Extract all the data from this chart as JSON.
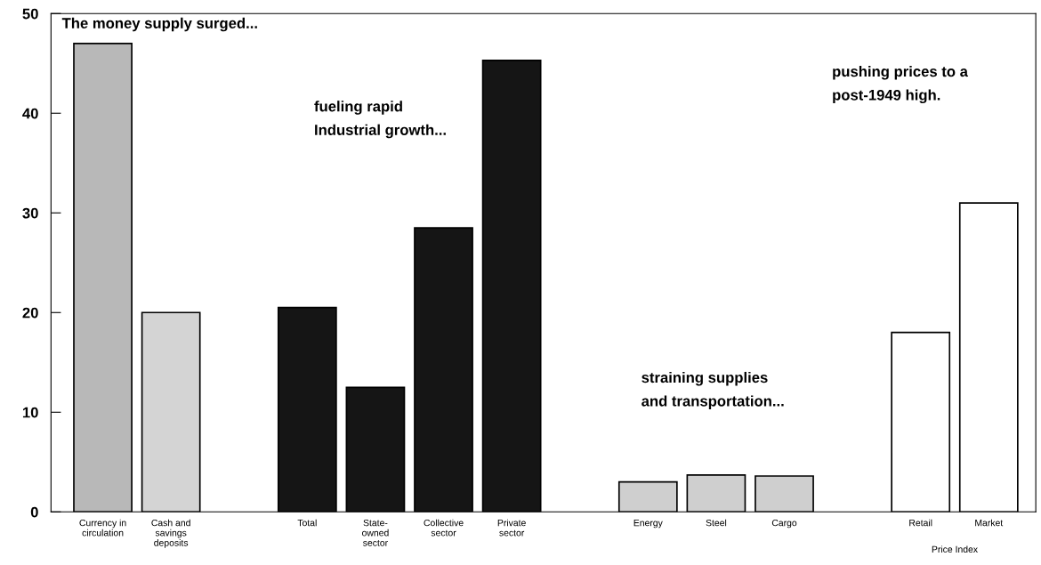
{
  "chart_data": {
    "type": "bar",
    "categories": [
      "Currency in\ncirculation",
      "Cash and\nsavings\ndeposits",
      null,
      "Total",
      "State-\nowned\nsector",
      "Collective\nsector",
      "Private\nsector",
      null,
      "Energy",
      "Steel",
      "Cargo",
      null,
      "Retail",
      "Market"
    ],
    "values": [
      47,
      20,
      null,
      20.5,
      12.5,
      28.5,
      45.3,
      null,
      3,
      3.7,
      3.6,
      null,
      18,
      31
    ],
    "colors": [
      "#b8b8b8",
      "#d4d4d4",
      null,
      "#151515",
      "#151515",
      "#151515",
      "#151515",
      null,
      "#cfcfcf",
      "#cfcfcf",
      "#cfcfcf",
      null,
      "#ffffff",
      "#ffffff"
    ],
    "ylim": [
      0,
      50
    ],
    "yticks": [
      0,
      10,
      20,
      30,
      40,
      50
    ],
    "grid": false,
    "legend": false,
    "annotations": [
      "The money supply surged...",
      "fueling rapid\nIndustrial growth...",
      "straining supplies\nand transportation...",
      "pushing prices to a\npost-1949 high.",
      "Price Index"
    ]
  }
}
